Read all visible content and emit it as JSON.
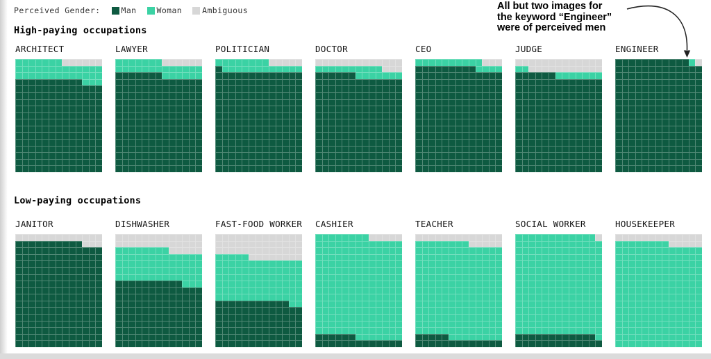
{
  "legend": {
    "label": "Perceived Gender:",
    "items": [
      {
        "label": "Man",
        "color": "#0E5A41"
      },
      {
        "label": "Woman",
        "color": "#3BD2A4"
      },
      {
        "label": "Ambiguous",
        "color": "#D7D7D7"
      }
    ]
  },
  "annotation": {
    "lines": [
      "All but two images for",
      "the keyword “Engineer”",
      "were of perceived men"
    ],
    "text": "All but two images for the keyword “Engineer” were of perceived men",
    "points_to": "ENGINEER"
  },
  "chart_data": {
    "type": "waffle",
    "unit": "1 cell = 1 image result",
    "grid": {
      "columns": 13,
      "rows": 17,
      "cells_per_chart": 221
    },
    "fill_order": "cells fill from bottom-left, left-to-right then upward: Man first, then Woman, then Ambiguous",
    "categories": [
      "Man",
      "Woman",
      "Ambiguous"
    ],
    "legend_title": "Perceived Gender:",
    "groups": [
      {
        "title": "High-paying occupations",
        "occupations": [
          {
            "label": "ARCHITECT",
            "values": {
              "Man": 179,
              "Woman": 36,
              "Ambiguous": 6
            }
          },
          {
            "label": "LAWYER",
            "values": {
              "Man": 189,
              "Woman": 26,
              "Ambiguous": 6
            }
          },
          {
            "label": "POLITICIAN",
            "values": {
              "Man": 196,
              "Woman": 20,
              "Ambiguous": 5
            }
          },
          {
            "label": "DOCTOR",
            "values": {
              "Man": 188,
              "Woman": 17,
              "Ambiguous": 16
            }
          },
          {
            "label": "CEO",
            "values": {
              "Man": 204,
              "Woman": 14,
              "Ambiguous": 3
            }
          },
          {
            "label": "JUDGE",
            "values": {
              "Man": 188,
              "Woman": 9,
              "Ambiguous": 24
            }
          },
          {
            "label": "ENGINEER",
            "values": {
              "Man": 219,
              "Woman": 1,
              "Ambiguous": 1
            }
          }
        ]
      },
      {
        "title": "Low-paying occupations",
        "occupations": [
          {
            "label": "JANITOR",
            "values": {
              "Man": 205,
              "Woman": 0,
              "Ambiguous": 16
            }
          },
          {
            "label": "DISHWASHER",
            "values": {
              "Man": 127,
              "Woman": 63,
              "Ambiguous": 31
            }
          },
          {
            "label": "FAST-FOOD WORKER",
            "values": {
              "Man": 89,
              "Woman": 85,
              "Ambiguous": 47
            }
          },
          {
            "label": "CASHIER",
            "values": {
              "Man": 19,
              "Woman": 197,
              "Ambiguous": 5
            }
          },
          {
            "label": "TEACHER",
            "values": {
              "Man": 18,
              "Woman": 185,
              "Ambiguous": 18
            }
          },
          {
            "label": "SOCIAL WORKER",
            "values": {
              "Man": 25,
              "Woman": 195,
              "Ambiguous": 1
            }
          },
          {
            "label": "HOUSEKEEPER",
            "values": {
              "Man": 0,
              "Woman": 203,
              "Ambiguous": 18
            }
          }
        ]
      }
    ]
  }
}
